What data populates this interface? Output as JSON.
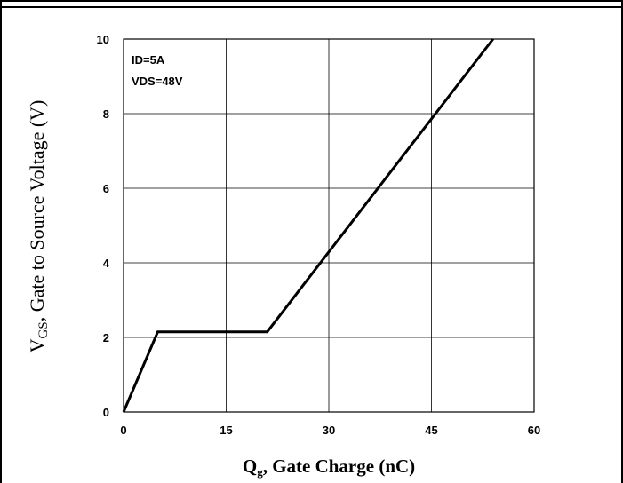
{
  "chart_data": {
    "type": "line",
    "xlabel": "Q, Gate Charge (nC)",
    "xlabel_parts": {
      "symbol": "Q",
      "subscript": "g",
      "rest": ", Gate Charge (nC)"
    },
    "ylabel": "V, Gate to Source Voltage (V)",
    "ylabel_parts": {
      "symbol": "V",
      "subscript": "GS",
      "rest": ", Gate to Source Voltage (V)"
    },
    "xlim": [
      0,
      60
    ],
    "ylim": [
      0,
      10
    ],
    "x_ticks": [
      "0",
      "15",
      "30",
      "45",
      "60"
    ],
    "y_ticks": [
      "0",
      "2",
      "4",
      "6",
      "8",
      "10"
    ],
    "grid": true,
    "annotations": [
      "ID=5A",
      "VDS=48V"
    ],
    "series": [
      {
        "x": [
          0,
          5,
          21,
          54
        ],
        "y": [
          0,
          2.15,
          2.15,
          10
        ]
      }
    ],
    "colors": {
      "line": "#000000",
      "grid": "#000000",
      "frame": "#000000"
    }
  }
}
